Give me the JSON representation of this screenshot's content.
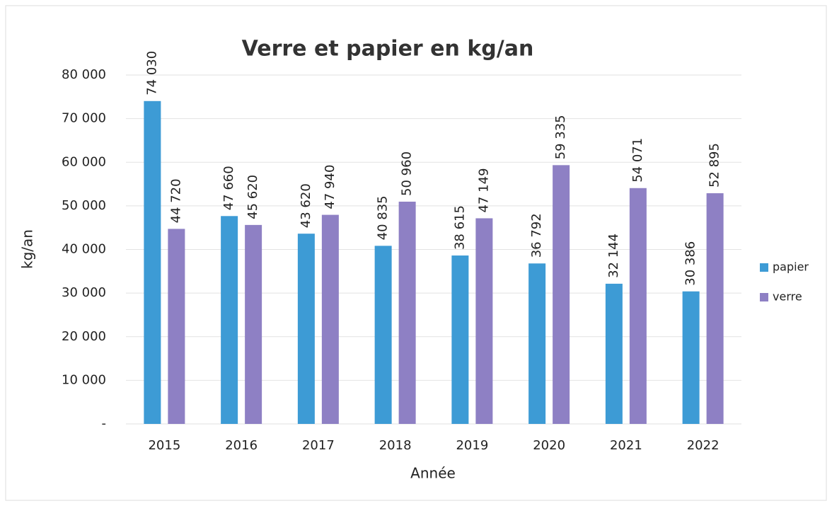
{
  "chart_data": {
    "type": "bar",
    "title": "Verre et papier en kg/an",
    "x_label": "Année",
    "y_label": "kg/an",
    "categories": [
      "2015",
      "2016",
      "2017",
      "2018",
      "2019",
      "2020",
      "2021",
      "2022"
    ],
    "series": [
      {
        "name": "papier",
        "color": "#3d9bd5",
        "values": [
          74030,
          47660,
          43620,
          40835,
          38615,
          36792,
          32144,
          30386
        ],
        "value_labels": [
          "74 030",
          "47 660",
          "43 620",
          "40 835",
          "38 615",
          "36 792",
          "32 144",
          "30 386"
        ]
      },
      {
        "name": "verre",
        "color": "#8e80c4",
        "values": [
          44720,
          45620,
          47940,
          50960,
          47149,
          59335,
          54071,
          52895
        ],
        "value_labels": [
          "44 720",
          "45 620",
          "47 940",
          "50 960",
          "47 149",
          "59 335",
          "54 071",
          "52 895"
        ]
      }
    ],
    "ylim": [
      0,
      80000
    ],
    "yticks": [
      {
        "value": 0,
        "label": "-"
      },
      {
        "value": 10000,
        "label": "10 000"
      },
      {
        "value": 20000,
        "label": "20 000"
      },
      {
        "value": 30000,
        "label": "30 000"
      },
      {
        "value": 40000,
        "label": "40 000"
      },
      {
        "value": 50000,
        "label": "50 000"
      },
      {
        "value": 60000,
        "label": "60 000"
      },
      {
        "value": 70000,
        "label": "70 000"
      },
      {
        "value": 80000,
        "label": "80 000"
      }
    ],
    "grid": true,
    "legend": "right"
  }
}
